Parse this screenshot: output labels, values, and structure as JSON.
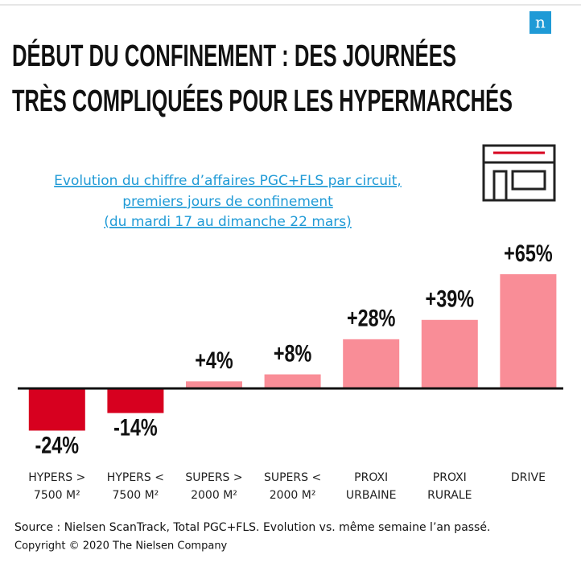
{
  "chart_data": {
    "type": "bar",
    "title": [
      "DÉBUT DU CONFINEMENT : DES JOURNÉES",
      "TRÈS COMPLIQUÉES POUR LES HYPERMARCHÉS"
    ],
    "subtitle": [
      "Evolution du chiffre d’affaires PGC+FLS par circuit,",
      "premiers jours de confinement",
      "(du mardi 17 au dimanche 22 mars)"
    ],
    "categories": [
      "HYPERS > 7500 M²",
      "HYPERS < 7500 M²",
      "SUPERS > 2000 M²",
      "SUPERS < 2000 M²",
      "PROXI URBAINE",
      "PROXI RURALE",
      "DRIVE"
    ],
    "values": [
      -24,
      -14,
      4,
      8,
      28,
      39,
      65
    ],
    "value_labels": [
      "-24%",
      "-14%",
      "+4%",
      "+8%",
      "+28%",
      "+39%",
      "+65%"
    ],
    "colors": [
      "#d7001f",
      "#d7001f",
      "#f98d97",
      "#f98d97",
      "#f98d97",
      "#f98d97",
      "#f98d97"
    ],
    "source": "Source : Nielsen ScanTrack, Total PGC+FLS. Evolution vs. même semaine l’an passé.",
    "copyright": "Copyright © 2020 The Nielsen Company",
    "logo": "n"
  }
}
